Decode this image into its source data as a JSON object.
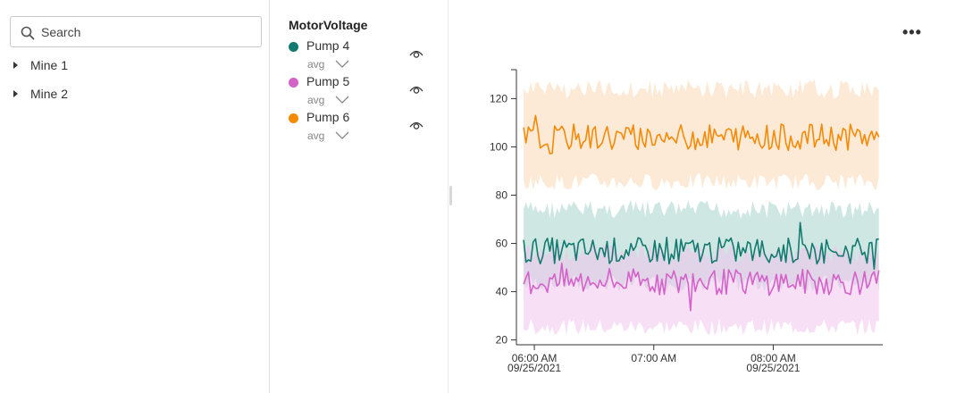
{
  "search": {
    "placeholder": "Search"
  },
  "tree": {
    "items": [
      {
        "label": "Mine 1"
      },
      {
        "label": "Mine 2"
      }
    ]
  },
  "legend": {
    "title": "MotorVoltage",
    "series": [
      {
        "name": "Pump 4",
        "aggregate": "avg",
        "color": "#137a6f",
        "icon": "eye-icon"
      },
      {
        "name": "Pump 5",
        "aggregate": "avg",
        "color": "#d462c9",
        "icon": "eye-icon"
      },
      {
        "name": "Pump 6",
        "aggregate": "avg",
        "color": "#f58a07",
        "icon": "eye-icon"
      }
    ]
  },
  "toolbar": {
    "more_label": "•••"
  },
  "chart_data": {
    "type": "line",
    "y_ticks": [
      "20",
      "40",
      "60",
      "80",
      "100",
      "120"
    ],
    "x_ticks": [
      {
        "time": "06:00 AM",
        "date": "09/25/2021"
      },
      {
        "time": "07:00 AM",
        "date": ""
      },
      {
        "time": "08:00 AM",
        "date": "09/25/2021"
      }
    ],
    "ylim": [
      18,
      132
    ],
    "xlim_minutes_after_0600": [
      -9,
      175
    ],
    "series": [
      {
        "name": "Pump 4",
        "color": "#137a6f",
        "band_color": "#a7d4cc",
        "mean": 57,
        "jitter": 5.5,
        "band": [
          40,
          78
        ]
      },
      {
        "name": "Pump 5",
        "color": "#d462c9",
        "band_color": "#f0c4ec",
        "mean": 44,
        "jitter": 5.5,
        "band": [
          22,
          60
        ]
      },
      {
        "name": "Pump 6",
        "color": "#f58a07",
        "band_color": "#fcd9b4",
        "mean": 104,
        "jitter": 5.5,
        "band": [
          82,
          128
        ]
      }
    ]
  }
}
